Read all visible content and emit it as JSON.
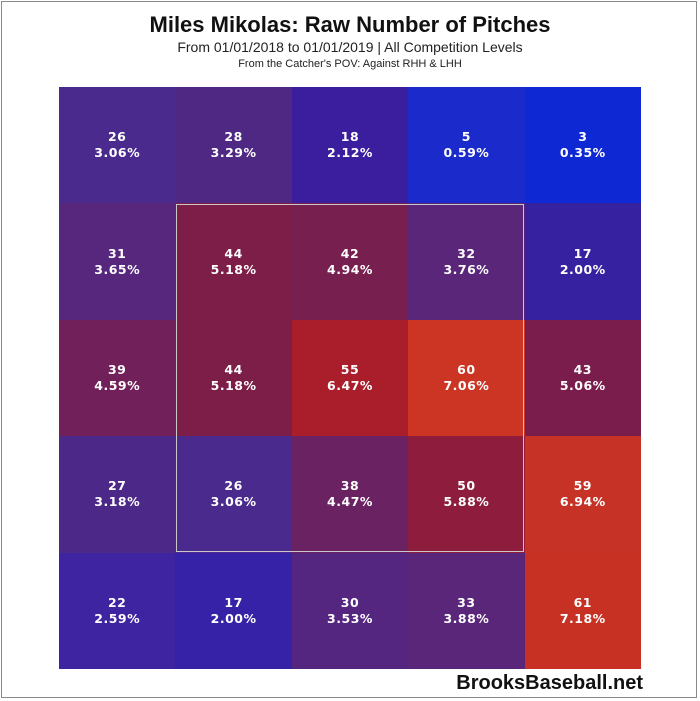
{
  "chart_data": {
    "type": "heatmap",
    "title": "Miles Mikolas: Raw Number of Pitches",
    "subtitle": "From 01/01/2018 to 01/01/2019 | All Competition Levels",
    "subtitle2": "From the Catcher's POV:   Against RHH & LHH",
    "rows": 5,
    "cols": 5,
    "cells": [
      [
        {
          "count": "26",
          "pct": "3.06%",
          "color": "#4A2A8C"
        },
        {
          "count": "28",
          "pct": "3.29%",
          "color": "#4E2883"
        },
        {
          "count": "18",
          "pct": "2.12%",
          "color": "#3A1E9E"
        },
        {
          "count": "5",
          "pct": "0.59%",
          "color": "#1A2ACB"
        },
        {
          "count": "3",
          "pct": "0.35%",
          "color": "#0E28D4"
        }
      ],
      [
        {
          "count": "31",
          "pct": "3.65%",
          "color": "#56277C"
        },
        {
          "count": "44",
          "pct": "5.18%",
          "color": "#7C1E48"
        },
        {
          "count": "42",
          "pct": "4.94%",
          "color": "#771F4E"
        },
        {
          "count": "32",
          "pct": "3.76%",
          "color": "#59267A"
        },
        {
          "count": "17",
          "pct": "2.00%",
          "color": "#3622A0"
        }
      ],
      [
        {
          "count": "39",
          "pct": "4.59%",
          "color": "#72205A"
        },
        {
          "count": "44",
          "pct": "5.18%",
          "color": "#7C1E48"
        },
        {
          "count": "55",
          "pct": "6.47%",
          "color": "#AA1E2C"
        },
        {
          "count": "60",
          "pct": "7.06%",
          "color": "#CC3423"
        },
        {
          "count": "43",
          "pct": "5.06%",
          "color": "#7A1D4C"
        }
      ],
      [
        {
          "count": "27",
          "pct": "3.18%",
          "color": "#4C2888"
        },
        {
          "count": "26",
          "pct": "3.06%",
          "color": "#4A2A8C"
        },
        {
          "count": "38",
          "pct": "4.47%",
          "color": "#6A2262"
        },
        {
          "count": "50",
          "pct": "5.88%",
          "color": "#8E1C3C"
        },
        {
          "count": "59",
          "pct": "6.94%",
          "color": "#C63226"
        }
      ],
      [
        {
          "count": "22",
          "pct": "2.59%",
          "color": "#3E24A0"
        },
        {
          "count": "17",
          "pct": "2.00%",
          "color": "#3622A6"
        },
        {
          "count": "30",
          "pct": "3.53%",
          "color": "#542680"
        },
        {
          "count": "33",
          "pct": "3.88%",
          "color": "#5A267A"
        },
        {
          "count": "61",
          "pct": "7.18%",
          "color": "#C63124"
        }
      ]
    ]
  },
  "brand": "BrooksBaseball.net"
}
